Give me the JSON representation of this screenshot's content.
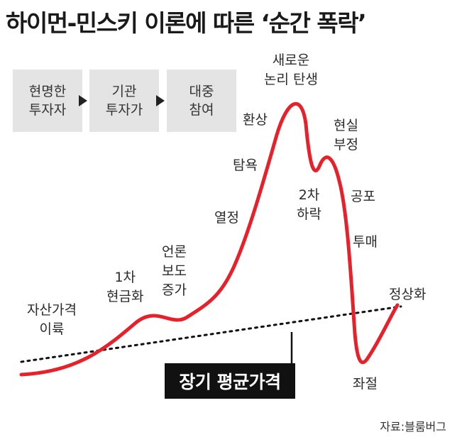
{
  "title": "하이먼-민스키 이론에 따른 ‘순간 폭락’",
  "stages": [
    {
      "line1": "현명한",
      "line2": "투자자"
    },
    {
      "line1": "기관",
      "line2": "투자가"
    },
    {
      "line1": "대중",
      "line2": "참여"
    }
  ],
  "labels": {
    "asset_rise": {
      "line1": "자산가격",
      "line2": "이륙"
    },
    "first_cash": {
      "line1": "1차",
      "line2": "현금화"
    },
    "media": {
      "line1": "언론",
      "line2": "보도",
      "line3": "증가"
    },
    "passion": "열정",
    "greed": "탐욕",
    "illusion": "환상",
    "new_logic": {
      "line1": "새로운",
      "line2": "논리 탄생"
    },
    "second_fall": {
      "line1": "2차",
      "line2": "하락"
    },
    "denial": {
      "line1": "현실",
      "line2": "부정"
    },
    "fear": "공포",
    "dumping": "투매",
    "frustration": "좌절",
    "normalization": "정상화"
  },
  "average_price_label": "장기 평균가격",
  "source": "자료:블룸버그",
  "colors": {
    "curve": "#e8202a",
    "trend": "#111111",
    "stage_bg": "#e4e4e4"
  }
}
